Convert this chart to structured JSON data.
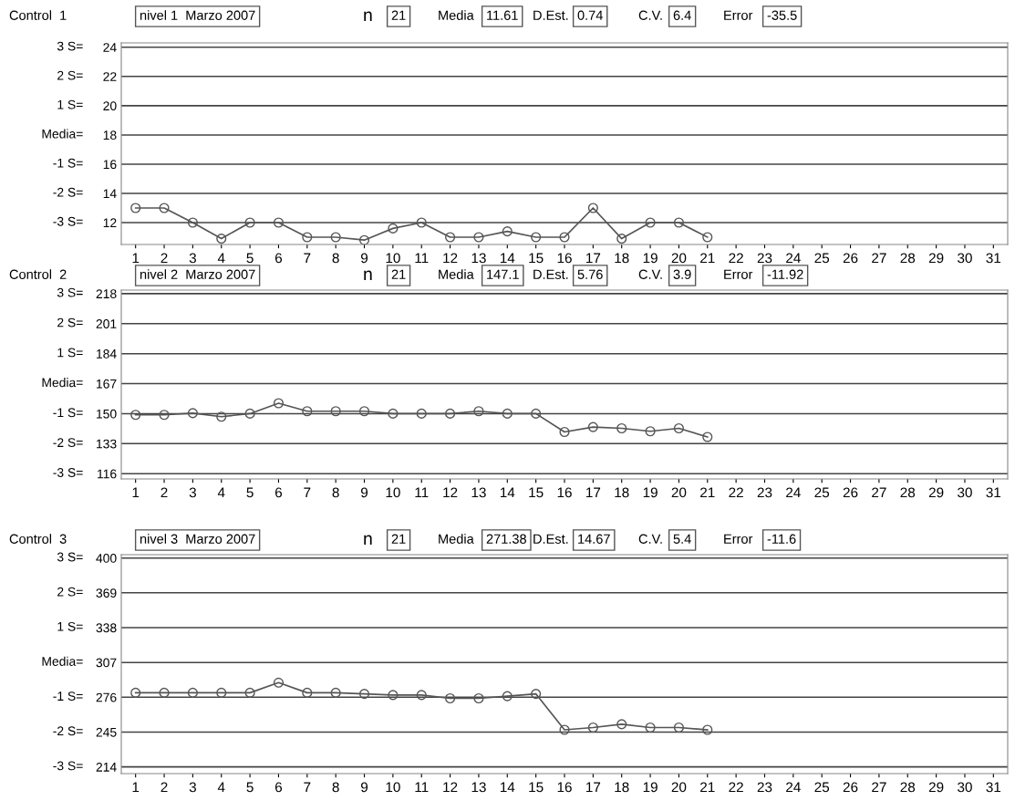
{
  "chart_data": [
    {
      "type": "line",
      "title": "Control  1",
      "annotations": [
        "nivel 1  Marzo 2007",
        "n",
        "21",
        "Media",
        "11.61",
        "D.Est.",
        "0.74",
        "C.V.",
        "6.4",
        "Error",
        "-35.5",
        "3 S=",
        "2 S=",
        "1 S=",
        "Media=",
        "-1 S=",
        "-2 S=",
        "-3 S="
      ],
      "categories": [
        "1",
        "2",
        "3",
        "4",
        "5",
        "6",
        "7",
        "8",
        "9",
        "10",
        "11",
        "12",
        "13",
        "14",
        "15",
        "16",
        "17",
        "18",
        "19",
        "20",
        "21",
        "22",
        "23",
        "24",
        "25",
        "26",
        "27",
        "28",
        "29",
        "30",
        "31"
      ],
      "series": [
        {
          "color": "#555555",
          "values": [
            13.0,
            13.0,
            12.0,
            10.9,
            12.0,
            12.0,
            11.0,
            11.0,
            10.8,
            11.6,
            12.0,
            11.0,
            11.0,
            11.4,
            11.0,
            11.0,
            13.0,
            10.9,
            12.0,
            12.0,
            11.0,
            null,
            null,
            null,
            null,
            null,
            null,
            null,
            null,
            null,
            null
          ]
        }
      ],
      "ylim": [
        10.5,
        24.3
      ],
      "yticks": [
        24,
        22,
        20,
        18,
        16,
        14,
        12
      ],
      "grid": "y",
      "marker": "circle",
      "line_style": "solid"
    },
    {
      "type": "line",
      "title": "Control  2",
      "annotations": [
        "nivel 2  Marzo 2007",
        "n",
        "21",
        "Media",
        "147.1",
        "D.Est.",
        "5.76",
        "C.V.",
        "3.9",
        "Error",
        "-11.92",
        "3 S=",
        "2 S=",
        "1 S=",
        "Media=",
        "-1 S=",
        "-2 S=",
        "-3 S="
      ],
      "categories": [
        "1",
        "2",
        "3",
        "4",
        "5",
        "6",
        "7",
        "8",
        "9",
        "10",
        "11",
        "12",
        "13",
        "14",
        "15",
        "16",
        "17",
        "18",
        "19",
        "20",
        "21",
        "22",
        "23",
        "24",
        "25",
        "26",
        "27",
        "28",
        "29",
        "30",
        "31"
      ],
      "series": [
        {
          "color": "#555555",
          "values": [
            149.3,
            149.3,
            150.3,
            148.3,
            150,
            155.9,
            151.4,
            151.4,
            151.4,
            150,
            150,
            150,
            151.4,
            150,
            150,
            139.6,
            142.4,
            141.7,
            140,
            141.7,
            136.8,
            null,
            null,
            null,
            null,
            null,
            null,
            null,
            null,
            null,
            null
          ]
        }
      ],
      "ylim": [
        113,
        220
      ],
      "yticks": [
        218,
        201,
        184,
        167,
        150,
        133,
        116
      ],
      "grid": "y",
      "marker": "circle",
      "line_style": "solid"
    },
    {
      "type": "line",
      "title": "Control  3",
      "annotations": [
        "nivel 3  Marzo 2007",
        "n",
        "21",
        "Media",
        "271.38",
        "D.Est.",
        "14.67",
        "C.V.",
        "5.4",
        "Error",
        "-11.6",
        "3 S=",
        "2 S=",
        "1 S=",
        "Media=",
        "-1 S=",
        "-2 S=",
        "-3 S="
      ],
      "categories": [
        "1",
        "2",
        "3",
        "4",
        "5",
        "6",
        "7",
        "8",
        "9",
        "10",
        "11",
        "12",
        "13",
        "14",
        "15",
        "16",
        "17",
        "18",
        "19",
        "20",
        "21",
        "22",
        "23",
        "24",
        "25",
        "26",
        "27",
        "28",
        "29",
        "30",
        "31"
      ],
      "series": [
        {
          "color": "#555555",
          "values": [
            280,
            280,
            280,
            280,
            280,
            289,
            280,
            280,
            279,
            278,
            278,
            275,
            275,
            277,
            279,
            247,
            249,
            252,
            249,
            249,
            247,
            null,
            null,
            null,
            null,
            null,
            null,
            null,
            null,
            null,
            null
          ]
        }
      ],
      "ylim": [
        208,
        403
      ],
      "yticks": [
        400,
        369,
        338,
        307,
        276,
        245,
        214
      ],
      "grid": "y",
      "marker": "circle",
      "line_style": "solid"
    }
  ]
}
